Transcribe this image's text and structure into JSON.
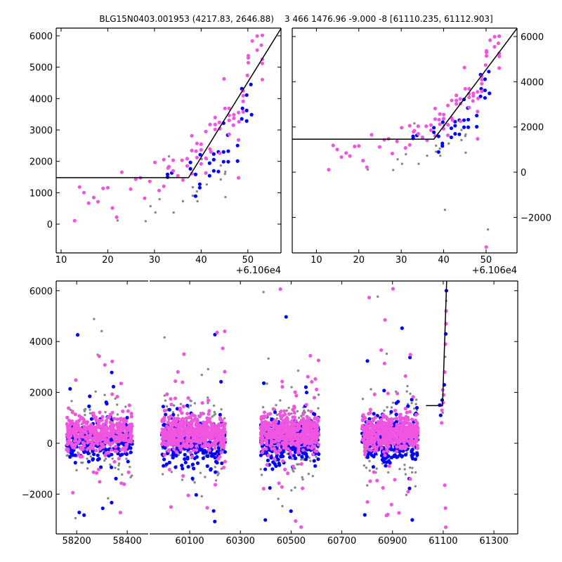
{
  "colors": {
    "pink": "#f055e0",
    "blue": "#0000ff",
    "gray": "#888888",
    "model": "#000000"
  },
  "chart_data": [
    {
      "id": "zoom-left",
      "type": "scatter",
      "title": "BLG15N0403.001953 (4217.83, 2646.88)",
      "x_offset_label": "+6.106e4",
      "xlim": [
        8.95,
        57.1
      ],
      "ylim": [
        -917,
        6246
      ],
      "xticks": [
        10,
        20,
        30,
        40,
        50
      ],
      "yticks": [
        0,
        1000,
        2000,
        3000,
        4000,
        5000,
        6000
      ],
      "yaxis_side": "left",
      "model": {
        "flat_level": 1480,
        "t_break": 37.3,
        "slope": 240
      },
      "series": [
        {
          "name": "pink",
          "points": [
            [
              12.9,
              109
            ],
            [
              13.96,
              1183
            ],
            [
              14.9,
              1004
            ],
            [
              15.9,
              668
            ],
            [
              17.0,
              847
            ],
            [
              17.9,
              713
            ],
            [
              19.0,
              1138
            ],
            [
              20.0,
              1160
            ],
            [
              21.0,
              512
            ],
            [
              21.9,
              221
            ],
            [
              23.0,
              1653
            ],
            [
              24.9,
              1116
            ],
            [
              26.0,
              1429
            ],
            [
              27.0,
              1474
            ],
            [
              27.9,
              825
            ],
            [
              29.0,
              1362
            ],
            [
              30.1,
              1966
            ],
            [
              31.0,
              1071
            ],
            [
              32.0,
              2055
            ],
            [
              32.0,
              1205
            ],
            [
              32.9,
              1787
            ],
            [
              33.1,
              1832
            ],
            [
              34.0,
              2033
            ],
            [
              34.0,
              1697
            ],
            [
              35.0,
              1541
            ],
            [
              35.9,
              2033
            ],
            [
              36.1,
              1407
            ],
            [
              37.0,
              2085
            ],
            [
              37.0,
              1854
            ],
            [
              38.0,
              2816
            ],
            [
              38.0,
              2346
            ],
            [
              38.0,
              1608
            ],
            [
              38.9,
              2324
            ],
            [
              39.1,
              2570
            ],
            [
              39.1,
              2122
            ],
            [
              40.0,
              2547
            ],
            [
              40.0,
              2368
            ],
            [
              40.0,
              1921
            ],
            [
              41.0,
              2950
            ],
            [
              41.0,
              2100
            ],
            [
              41.0,
              1630
            ],
            [
              41.9,
              3174
            ],
            [
              41.9,
              2391
            ],
            [
              42.1,
              2301
            ],
            [
              43.0,
              3397
            ],
            [
              43.0,
              3174
            ],
            [
              43.0,
              3017
            ],
            [
              43.9,
              3241
            ],
            [
              44.0,
              3039
            ],
            [
              44.0,
              2257
            ],
            [
              44.9,
              4628
            ],
            [
              45.1,
              3688
            ],
            [
              46.0,
              3688
            ],
            [
              46.0,
              3465
            ],
            [
              46.0,
              3308
            ],
            [
              46.0,
              2860
            ],
            [
              47.0,
              3487
            ],
            [
              47.0,
              3375
            ],
            [
              46.9,
              3151
            ],
            [
              48.0,
              3554
            ],
            [
              48.0,
              2682
            ],
            [
              48.0,
              1474
            ],
            [
              48.1,
              3263
            ],
            [
              49.0,
              4248
            ],
            [
              49.0,
              4091
            ],
            [
              49.0,
              3912
            ],
            [
              49.0,
              3576
            ],
            [
              49.9,
              4740
            ],
            [
              50.1,
              5366
            ],
            [
              50.1,
              5299
            ],
            [
              50.1,
              5142
            ],
            [
              50.95,
              5836
            ],
            [
              52.0,
              5993
            ],
            [
              52.0,
              5545
            ],
            [
              53.1,
              6015
            ],
            [
              52.9,
              5702
            ],
            [
              53.1,
              5254
            ],
            [
              53.1,
              5120
            ],
            [
              53.1,
              4605
            ]
          ]
        },
        {
          "name": "blue",
          "points": [
            [
              32.8,
              1585
            ],
            [
              32.8,
              1496
            ],
            [
              33.7,
              1630
            ],
            [
              37.7,
              1966
            ],
            [
              37.7,
              1764
            ],
            [
              38.8,
              1585
            ],
            [
              38.8,
              892
            ],
            [
              39.7,
              1272
            ],
            [
              39.7,
              1160
            ],
            [
              39.8,
              2212
            ],
            [
              41.8,
              1943
            ],
            [
              41.8,
              1541
            ],
            [
              42.7,
              2234
            ],
            [
              42.7,
              2055
            ],
            [
              42.7,
              1697
            ],
            [
              43.7,
              2301
            ],
            [
              43.7,
              1675
            ],
            [
              44.8,
              3218
            ],
            [
              44.8,
              2301
            ],
            [
              44.8,
              1988
            ],
            [
              45.7,
              2838
            ],
            [
              45.8,
              2324
            ],
            [
              45.8,
              1988
            ],
            [
              47.8,
              2503
            ],
            [
              47.8,
              2010
            ],
            [
              48.7,
              4315
            ],
            [
              48.85,
              3688
            ],
            [
              48.7,
              3353
            ],
            [
              49.75,
              4113
            ],
            [
              49.75,
              3621
            ],
            [
              49.75,
              3286
            ],
            [
              50.65,
              4449
            ],
            [
              50.8,
              3487
            ]
          ]
        },
        {
          "name": "gray",
          "points": [
            [
              22.1,
              116
            ],
            [
              28.1,
              94
            ],
            [
              29.15,
              571
            ],
            [
              30.2,
              370
            ],
            [
              31.1,
              795
            ],
            [
              33.1,
              2160
            ],
            [
              34.1,
              370
            ],
            [
              36.1,
              728
            ],
            [
              38.2,
              1175
            ],
            [
              38.2,
              907
            ],
            [
              39.1,
              1041
            ],
            [
              39.2,
              728
            ],
            [
              40.1,
              2070
            ],
            [
              41.2,
              2070
            ],
            [
              41.2,
              1265
            ],
            [
              44.2,
              1869
            ],
            [
              44.2,
              1422
            ],
            [
              45.2,
              1668
            ],
            [
              45.1,
              1601
            ],
            [
              45.2,
              862
            ]
          ]
        }
      ]
    },
    {
      "id": "zoom-right",
      "type": "scatter",
      "title": "3 466 1476.96 -9.000 -8 [61110.235, 61112.903]",
      "x_offset_label": "+6.106e4",
      "xlim": [
        4.3,
        57.3
      ],
      "ylim": [
        -3571,
        6373
      ],
      "xticks": [
        10,
        20,
        30,
        40,
        50
      ],
      "yticks": [
        -2000,
        0,
        2000,
        4000,
        6000
      ],
      "yaxis_side": "right",
      "model": {
        "flat_level": 1460,
        "t_break": 37.7,
        "slope": 250
      },
      "same_points_as": "zoom-left",
      "extra_points": [
        {
          "series": "gray",
          "x": 40.3,
          "y": -1667
        },
        {
          "series": "gray",
          "x": 50.45,
          "y": -2537
        },
        {
          "series": "pink",
          "x": 50.05,
          "y": -3313
        }
      ]
    },
    {
      "id": "full-lightcurve",
      "type": "scatter",
      "broken_x_axis": true,
      "xlim_left": [
        58119,
        58483
      ],
      "xlim_right": [
        59942,
        61394
      ],
      "ylim": [
        -3564,
        6381
      ],
      "xticks_left": [
        58200,
        58400
      ],
      "xticks_right": [
        60100,
        60300,
        60500,
        60700,
        60900,
        61100,
        61300
      ],
      "yticks": [
        -2000,
        0,
        2000,
        4000,
        6000
      ],
      "model": {
        "flat_level": 1480,
        "flat_from": 61032,
        "t_break": 61097.3,
        "slope": 300
      },
      "seasons": [
        {
          "range": [
            58160,
            58420
          ],
          "count": 420
        },
        {
          "range": [
            59990,
            60240
          ],
          "count": 520
        },
        {
          "range": [
            60380,
            60610
          ],
          "count": 520
        },
        {
          "range": [
            60780,
            61000
          ],
          "count": 520
        }
      ],
      "series_levels": {
        "pink": {
          "mean": 400,
          "sd": 330,
          "tail": 1500
        },
        "blue": {
          "mean": 80,
          "sd": 420,
          "tail": 1600
        },
        "gray": {
          "mean": 250,
          "sd": 700,
          "tail": 2600
        }
      },
      "event_points": [
        [
          61090,
          1100
        ],
        [
          61092,
          1500
        ],
        [
          61094,
          800
        ],
        [
          61095,
          1300
        ],
        [
          61096,
          1700
        ],
        [
          61098,
          1200
        ],
        [
          61100,
          1600
        ],
        [
          61102,
          1900
        ],
        [
          61104,
          2300
        ],
        [
          61106,
          2800
        ],
        [
          61108,
          3400
        ],
        [
          61109,
          3900
        ],
        [
          61110,
          4300
        ],
        [
          61111,
          4700
        ],
        [
          61111.5,
          5200
        ],
        [
          61112,
          5600
        ],
        [
          61112.5,
          6000
        ],
        [
          61106,
          -1650
        ],
        [
          61109,
          -2550
        ],
        [
          61110,
          -3300
        ],
        [
          61086,
          1500
        ],
        [
          61098,
          2100
        ]
      ]
    }
  ]
}
